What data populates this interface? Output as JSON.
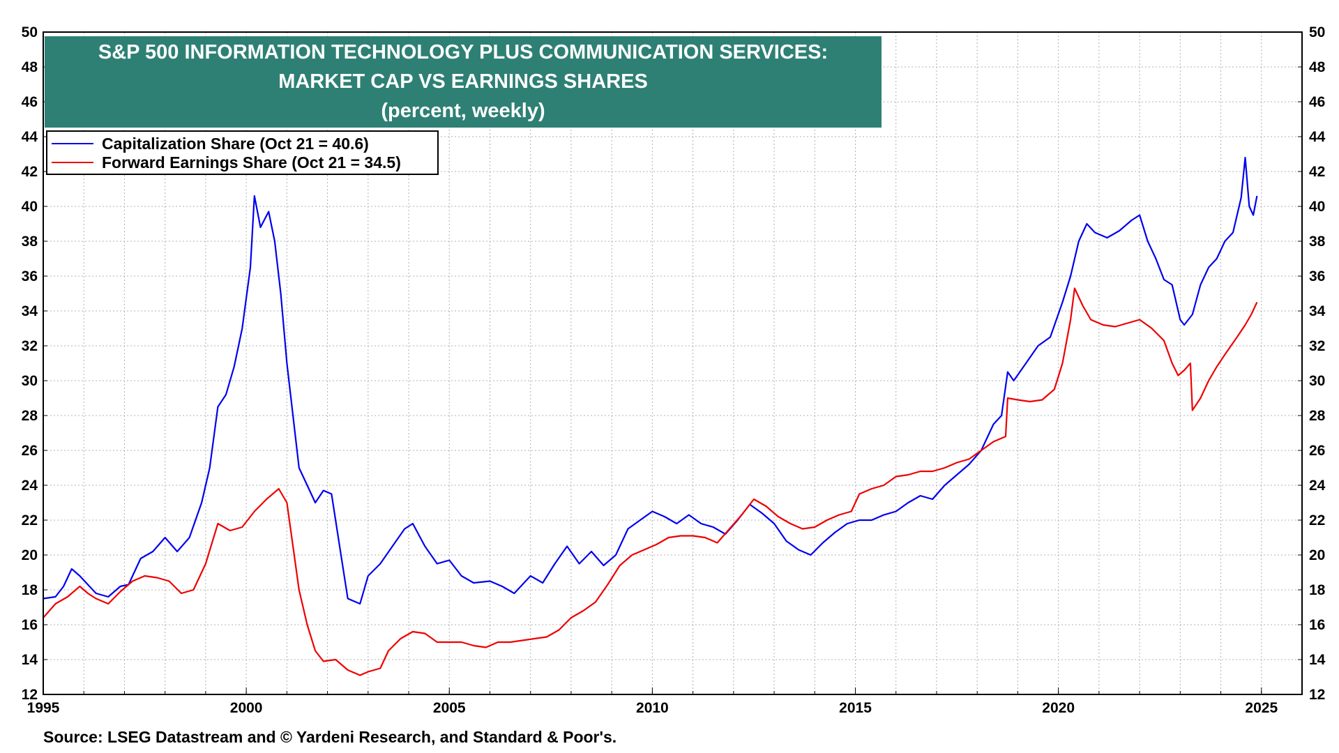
{
  "title": {
    "line1": "S&P 500 INFORMATION TECHNOLOGY PLUS COMMUNICATION SERVICES:",
    "line2": "MARKET CAP VS EARNINGS SHARES",
    "line3": "(percent, weekly)"
  },
  "legend": {
    "cap_label": "Capitalization Share  (Oct 21 = 40.6)",
    "earn_label": "Forward Earnings Share (Oct 21 = 34.5)"
  },
  "source": "Source: LSEG Datastream and © Yardeni Research, and Standard & Poor's.",
  "colors": {
    "cap": "#0000ee",
    "earn": "#ee0000",
    "title_bg": "#2e8074",
    "grid": "#b0b0b0"
  },
  "chart_data": {
    "type": "line",
    "title": "S&P 500 INFORMATION TECHNOLOGY PLUS COMMUNICATION SERVICES: MARKET CAP VS EARNINGS SHARES (percent, weekly)",
    "xlabel": "",
    "ylabel": "percent",
    "xlim": [
      1995,
      2026
    ],
    "ylim": [
      12,
      50
    ],
    "x_ticks": [
      1995,
      2000,
      2005,
      2010,
      2015,
      2020,
      2025
    ],
    "y_ticks": [
      12,
      14,
      16,
      18,
      20,
      22,
      24,
      26,
      28,
      30,
      32,
      34,
      36,
      38,
      40,
      42,
      44,
      46,
      48,
      50
    ],
    "grid": true,
    "legend_position": "top-left",
    "series": [
      {
        "name": "Capitalization Share  (Oct 21 = 40.6)",
        "color": "#0000ee",
        "points": [
          [
            1995.0,
            17.5
          ],
          [
            1995.3,
            17.6
          ],
          [
            1995.5,
            18.2
          ],
          [
            1995.7,
            19.2
          ],
          [
            1995.9,
            18.8
          ],
          [
            1996.1,
            18.3
          ],
          [
            1996.3,
            17.8
          ],
          [
            1996.6,
            17.6
          ],
          [
            1996.9,
            18.2
          ],
          [
            1997.1,
            18.3
          ],
          [
            1997.4,
            19.8
          ],
          [
            1997.7,
            20.2
          ],
          [
            1998.0,
            21.0
          ],
          [
            1998.3,
            20.2
          ],
          [
            1998.6,
            21.0
          ],
          [
            1998.9,
            23.0
          ],
          [
            1999.1,
            25.0
          ],
          [
            1999.3,
            28.5
          ],
          [
            1999.5,
            29.2
          ],
          [
            1999.7,
            30.8
          ],
          [
            1999.9,
            33.0
          ],
          [
            2000.1,
            36.5
          ],
          [
            2000.2,
            40.6
          ],
          [
            2000.35,
            38.8
          ],
          [
            2000.55,
            39.7
          ],
          [
            2000.7,
            38.0
          ],
          [
            2000.85,
            35.0
          ],
          [
            2001.0,
            31.0
          ],
          [
            2001.1,
            29.0
          ],
          [
            2001.3,
            25.0
          ],
          [
            2001.5,
            24.0
          ],
          [
            2001.7,
            23.0
          ],
          [
            2001.9,
            23.7
          ],
          [
            2002.1,
            23.5
          ],
          [
            2002.3,
            20.5
          ],
          [
            2002.5,
            17.5
          ],
          [
            2002.8,
            17.2
          ],
          [
            2003.0,
            18.8
          ],
          [
            2003.3,
            19.5
          ],
          [
            2003.6,
            20.5
          ],
          [
            2003.9,
            21.5
          ],
          [
            2004.1,
            21.8
          ],
          [
            2004.4,
            20.5
          ],
          [
            2004.7,
            19.5
          ],
          [
            2005.0,
            19.7
          ],
          [
            2005.3,
            18.8
          ],
          [
            2005.6,
            18.4
          ],
          [
            2006.0,
            18.5
          ],
          [
            2006.3,
            18.2
          ],
          [
            2006.6,
            17.8
          ],
          [
            2007.0,
            18.8
          ],
          [
            2007.3,
            18.4
          ],
          [
            2007.6,
            19.5
          ],
          [
            2007.9,
            20.5
          ],
          [
            2008.2,
            19.5
          ],
          [
            2008.5,
            20.2
          ],
          [
            2008.8,
            19.4
          ],
          [
            2009.1,
            20.0
          ],
          [
            2009.4,
            21.5
          ],
          [
            2009.7,
            22.0
          ],
          [
            2010.0,
            22.5
          ],
          [
            2010.3,
            22.2
          ],
          [
            2010.6,
            21.8
          ],
          [
            2010.9,
            22.3
          ],
          [
            2011.2,
            21.8
          ],
          [
            2011.5,
            21.6
          ],
          [
            2011.8,
            21.2
          ],
          [
            2012.1,
            22.0
          ],
          [
            2012.4,
            22.9
          ],
          [
            2012.7,
            22.4
          ],
          [
            2013.0,
            21.8
          ],
          [
            2013.3,
            20.8
          ],
          [
            2013.6,
            20.3
          ],
          [
            2013.9,
            20.0
          ],
          [
            2014.2,
            20.7
          ],
          [
            2014.5,
            21.3
          ],
          [
            2014.8,
            21.8
          ],
          [
            2015.1,
            22.0
          ],
          [
            2015.4,
            22.0
          ],
          [
            2015.7,
            22.3
          ],
          [
            2016.0,
            22.5
          ],
          [
            2016.3,
            23.0
          ],
          [
            2016.6,
            23.4
          ],
          [
            2016.9,
            23.2
          ],
          [
            2017.2,
            24.0
          ],
          [
            2017.5,
            24.6
          ],
          [
            2017.8,
            25.2
          ],
          [
            2018.1,
            26.0
          ],
          [
            2018.4,
            27.5
          ],
          [
            2018.6,
            28.0
          ],
          [
            2018.75,
            30.5
          ],
          [
            2018.9,
            30.0
          ],
          [
            2019.2,
            31.0
          ],
          [
            2019.5,
            32.0
          ],
          [
            2019.8,
            32.5
          ],
          [
            2020.1,
            34.5
          ],
          [
            2020.3,
            36.0
          ],
          [
            2020.5,
            38.0
          ],
          [
            2020.7,
            39.0
          ],
          [
            2020.9,
            38.5
          ],
          [
            2021.2,
            38.2
          ],
          [
            2021.5,
            38.6
          ],
          [
            2021.8,
            39.2
          ],
          [
            2022.0,
            39.5
          ],
          [
            2022.2,
            38.0
          ],
          [
            2022.4,
            37.0
          ],
          [
            2022.6,
            35.8
          ],
          [
            2022.8,
            35.5
          ],
          [
            2023.0,
            33.5
          ],
          [
            2023.1,
            33.2
          ],
          [
            2023.3,
            33.8
          ],
          [
            2023.5,
            35.5
          ],
          [
            2023.7,
            36.5
          ],
          [
            2023.9,
            37.0
          ],
          [
            2024.1,
            38.0
          ],
          [
            2024.3,
            38.5
          ],
          [
            2024.5,
            40.5
          ],
          [
            2024.6,
            42.8
          ],
          [
            2024.7,
            40.0
          ],
          [
            2024.8,
            39.5
          ],
          [
            2024.89,
            40.6
          ]
        ]
      },
      {
        "name": "Forward Earnings Share (Oct 21 = 34.5)",
        "color": "#ee0000",
        "points": [
          [
            1995.0,
            16.4
          ],
          [
            1995.3,
            17.2
          ],
          [
            1995.6,
            17.6
          ],
          [
            1995.9,
            18.2
          ],
          [
            1996.1,
            17.8
          ],
          [
            1996.3,
            17.5
          ],
          [
            1996.6,
            17.2
          ],
          [
            1996.9,
            17.9
          ],
          [
            1997.2,
            18.5
          ],
          [
            1997.5,
            18.8
          ],
          [
            1997.8,
            18.7
          ],
          [
            1998.1,
            18.5
          ],
          [
            1998.4,
            17.8
          ],
          [
            1998.7,
            18.0
          ],
          [
            1999.0,
            19.5
          ],
          [
            1999.3,
            21.8
          ],
          [
            1999.6,
            21.4
          ],
          [
            1999.9,
            21.6
          ],
          [
            2000.2,
            22.5
          ],
          [
            2000.5,
            23.2
          ],
          [
            2000.8,
            23.8
          ],
          [
            2001.0,
            23.0
          ],
          [
            2001.15,
            20.5
          ],
          [
            2001.3,
            18.0
          ],
          [
            2001.5,
            16.0
          ],
          [
            2001.7,
            14.5
          ],
          [
            2001.9,
            13.9
          ],
          [
            2002.2,
            14.0
          ],
          [
            2002.5,
            13.4
          ],
          [
            2002.8,
            13.1
          ],
          [
            2003.0,
            13.3
          ],
          [
            2003.3,
            13.5
          ],
          [
            2003.5,
            14.5
          ],
          [
            2003.8,
            15.2
          ],
          [
            2004.1,
            15.6
          ],
          [
            2004.4,
            15.5
          ],
          [
            2004.7,
            15.0
          ],
          [
            2005.0,
            15.0
          ],
          [
            2005.3,
            15.0
          ],
          [
            2005.6,
            14.8
          ],
          [
            2005.9,
            14.7
          ],
          [
            2006.2,
            15.0
          ],
          [
            2006.5,
            15.0
          ],
          [
            2006.8,
            15.1
          ],
          [
            2007.1,
            15.2
          ],
          [
            2007.4,
            15.3
          ],
          [
            2007.7,
            15.7
          ],
          [
            2008.0,
            16.4
          ],
          [
            2008.3,
            16.8
          ],
          [
            2008.6,
            17.3
          ],
          [
            2008.9,
            18.3
          ],
          [
            2009.2,
            19.4
          ],
          [
            2009.5,
            20.0
          ],
          [
            2009.8,
            20.3
          ],
          [
            2010.1,
            20.6
          ],
          [
            2010.4,
            21.0
          ],
          [
            2010.7,
            21.1
          ],
          [
            2011.0,
            21.1
          ],
          [
            2011.3,
            21.0
          ],
          [
            2011.6,
            20.7
          ],
          [
            2011.9,
            21.5
          ],
          [
            2012.2,
            22.3
          ],
          [
            2012.5,
            23.2
          ],
          [
            2012.8,
            22.8
          ],
          [
            2013.1,
            22.2
          ],
          [
            2013.4,
            21.8
          ],
          [
            2013.7,
            21.5
          ],
          [
            2014.0,
            21.6
          ],
          [
            2014.3,
            22.0
          ],
          [
            2014.6,
            22.3
          ],
          [
            2014.9,
            22.5
          ],
          [
            2015.1,
            23.5
          ],
          [
            2015.4,
            23.8
          ],
          [
            2015.7,
            24.0
          ],
          [
            2016.0,
            24.5
          ],
          [
            2016.3,
            24.6
          ],
          [
            2016.6,
            24.8
          ],
          [
            2016.9,
            24.8
          ],
          [
            2017.2,
            25.0
          ],
          [
            2017.5,
            25.3
          ],
          [
            2017.8,
            25.5
          ],
          [
            2018.1,
            26.0
          ],
          [
            2018.4,
            26.5
          ],
          [
            2018.7,
            26.8
          ],
          [
            2018.75,
            29.0
          ],
          [
            2019.0,
            28.9
          ],
          [
            2019.3,
            28.8
          ],
          [
            2019.6,
            28.9
          ],
          [
            2019.9,
            29.5
          ],
          [
            2020.1,
            31.0
          ],
          [
            2020.3,
            33.5
          ],
          [
            2020.4,
            35.3
          ],
          [
            2020.6,
            34.3
          ],
          [
            2020.8,
            33.5
          ],
          [
            2021.1,
            33.2
          ],
          [
            2021.4,
            33.1
          ],
          [
            2021.7,
            33.3
          ],
          [
            2022.0,
            33.5
          ],
          [
            2022.3,
            33.0
          ],
          [
            2022.6,
            32.3
          ],
          [
            2022.8,
            31.0
          ],
          [
            2022.95,
            30.3
          ],
          [
            2023.1,
            30.6
          ],
          [
            2023.25,
            31.0
          ],
          [
            2023.3,
            28.3
          ],
          [
            2023.5,
            29.0
          ],
          [
            2023.7,
            30.0
          ],
          [
            2023.9,
            30.8
          ],
          [
            2024.1,
            31.5
          ],
          [
            2024.4,
            32.5
          ],
          [
            2024.6,
            33.2
          ],
          [
            2024.75,
            33.8
          ],
          [
            2024.89,
            34.5
          ]
        ]
      }
    ]
  }
}
